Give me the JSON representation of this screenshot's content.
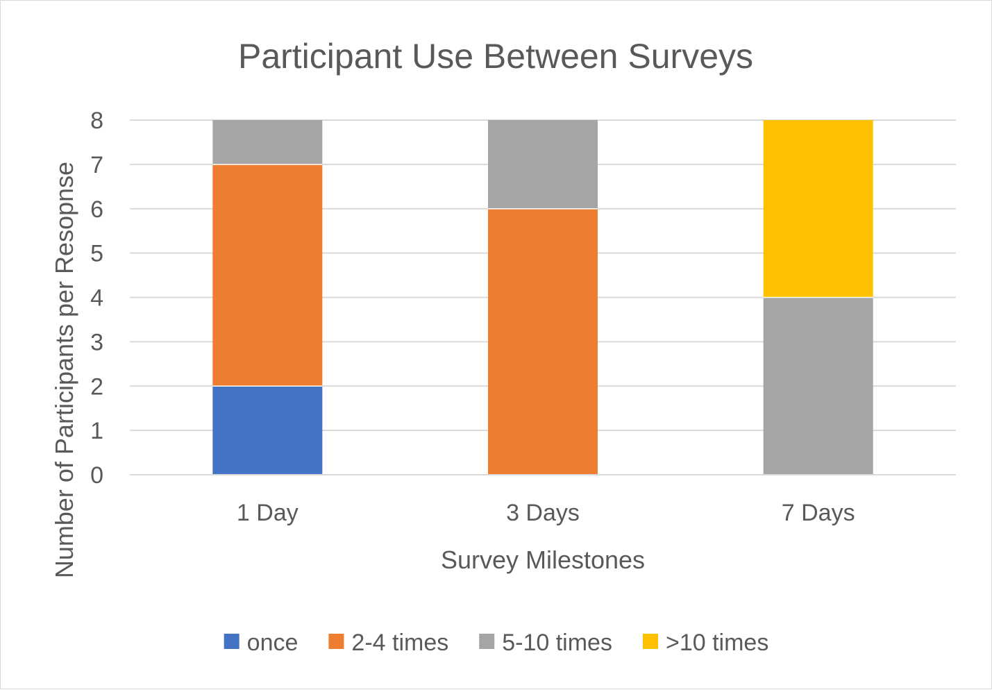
{
  "chart_data": {
    "type": "bar",
    "stacked": true,
    "title": "Participant Use Between Surveys",
    "xlabel": "Survey Milestones",
    "ylabel": "Number of Participants per Resopnse",
    "categories": [
      "1 Day",
      "3 Days",
      "7 Days"
    ],
    "series": [
      {
        "name": "once",
        "color": "#4472c4",
        "values": [
          2,
          0,
          0
        ]
      },
      {
        "name": "2-4 times",
        "color": "#ed7d31",
        "values": [
          5,
          6,
          0
        ]
      },
      {
        "name": "5-10 times",
        "color": "#a5a5a5",
        "values": [
          1,
          2,
          4
        ]
      },
      {
        "name": ">10 times",
        "color": "#ffc000",
        "values": [
          0,
          0,
          4
        ]
      }
    ],
    "ylim": [
      0,
      8
    ],
    "yticks": [
      "0",
      "1",
      "2",
      "3",
      "4",
      "5",
      "6",
      "7",
      "8"
    ],
    "grid": true,
    "legend_position": "bottom"
  }
}
